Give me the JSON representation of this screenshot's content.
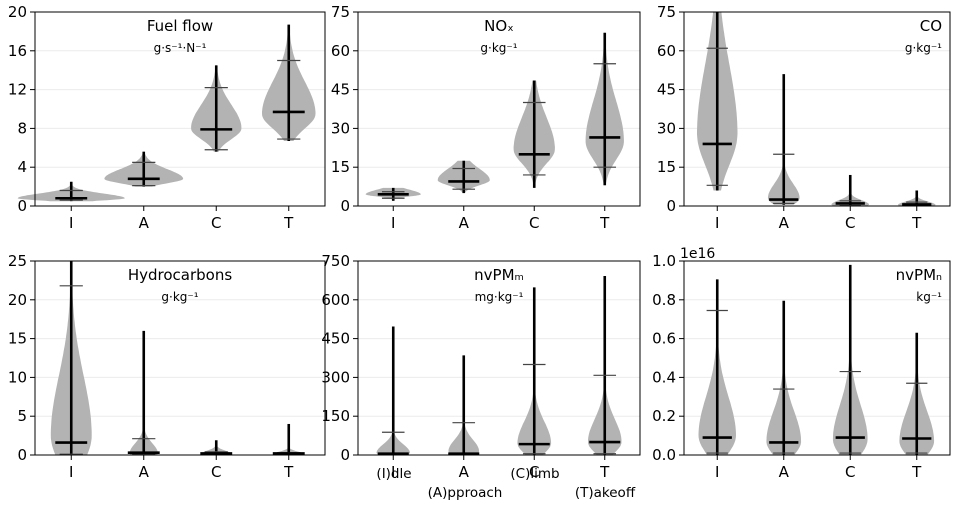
{
  "figure": {
    "category_labels": [
      "(I)dle",
      "(A)pproach",
      "(C)limb",
      "(T)akeoff"
    ]
  },
  "chart_data": [
    {
      "type": "violin",
      "title": "Fuel flow",
      "unit": "g·s⁻¹·N⁻¹",
      "title_align": "center",
      "categories": [
        "I",
        "A",
        "C",
        "T"
      ],
      "ylim": [
        0,
        20
      ],
      "yticks": [
        0,
        4,
        8,
        12,
        16,
        20
      ],
      "ytick_labels": [
        "0",
        "4",
        "8",
        "12",
        "16",
        "20"
      ],
      "multiplier": "",
      "grid": true,
      "series": [
        {
          "category": "I",
          "min": 0.5,
          "max": 2.5,
          "median": 0.8,
          "p05": 0.6,
          "p95": 1.6,
          "peak": 0.8,
          "width": 0.68,
          "spread": 0.22
        },
        {
          "category": "A",
          "min": 2.0,
          "max": 5.6,
          "median": 2.8,
          "p05": 2.1,
          "p95": 4.5,
          "peak": 2.8,
          "width": 0.5,
          "spread": 0.45
        },
        {
          "category": "C",
          "min": 5.6,
          "max": 14.5,
          "median": 7.9,
          "p05": 5.8,
          "p95": 12.2,
          "peak": 8.0,
          "width": 0.32,
          "spread": 1.1
        },
        {
          "category": "T",
          "min": 6.7,
          "max": 18.7,
          "median": 9.7,
          "p05": 6.9,
          "p95": 15.0,
          "peak": 9.5,
          "width": 0.34,
          "spread": 1.5
        }
      ]
    },
    {
      "type": "violin",
      "title": "NOₓ",
      "unit": "g·kg⁻¹",
      "title_align": "center",
      "categories": [
        "I",
        "A",
        "C",
        "T"
      ],
      "ylim": [
        0,
        75
      ],
      "yticks": [
        0,
        15,
        30,
        45,
        60,
        75
      ],
      "ytick_labels": [
        "0",
        "15",
        "30",
        "45",
        "60",
        "75"
      ],
      "multiplier": "",
      "grid": true,
      "series": [
        {
          "category": "I",
          "min": 2.0,
          "max": 7.0,
          "median": 4.5,
          "p05": 3.0,
          "p95": 5.5,
          "peak": 4.5,
          "width": 0.36,
          "spread": 0.8
        },
        {
          "category": "A",
          "min": 5.0,
          "max": 17.5,
          "median": 9.5,
          "p05": 6.5,
          "p95": 14.5,
          "peak": 10.0,
          "width": 0.34,
          "spread": 2.0
        },
        {
          "category": "C",
          "min": 7.0,
          "max": 48.5,
          "median": 20.0,
          "p05": 12.0,
          "p95": 40.0,
          "peak": 22.0,
          "width": 0.27,
          "spread": 5.5
        },
        {
          "category": "T",
          "min": 8.0,
          "max": 67.0,
          "median": 26.5,
          "p05": 15.0,
          "p95": 55.0,
          "peak": 25.0,
          "width": 0.25,
          "spread": 7.0
        }
      ]
    },
    {
      "type": "violin",
      "title": "CO",
      "unit": "g·kg⁻¹",
      "title_align": "right",
      "categories": [
        "I",
        "A",
        "C",
        "T"
      ],
      "ylim": [
        0,
        75
      ],
      "yticks": [
        0,
        15,
        30,
        45,
        60,
        75
      ],
      "ytick_labels": [
        "0",
        "15",
        "30",
        "45",
        "60",
        "75"
      ],
      "multiplier": "",
      "grid": true,
      "series": [
        {
          "category": "I",
          "min": 6.0,
          "max": 75.0,
          "median": 24.0,
          "p05": 8.0,
          "p95": 61.0,
          "peak": 28.0,
          "width": 0.28,
          "spread": 12.0
        },
        {
          "category": "A",
          "min": 0.5,
          "max": 51.0,
          "median": 2.5,
          "p05": 1.0,
          "p95": 20.0,
          "peak": 3.0,
          "width": 0.22,
          "spread": 2.5
        },
        {
          "category": "C",
          "min": 0.0,
          "max": 12.0,
          "median": 1.0,
          "p05": 0.2,
          "p95": 2.0,
          "peak": 0.5,
          "width": 0.26,
          "spread": 0.8
        },
        {
          "category": "T",
          "min": 0.0,
          "max": 6.0,
          "median": 0.6,
          "p05": 0.1,
          "p95": 1.5,
          "peak": 0.4,
          "width": 0.26,
          "spread": 0.6
        }
      ]
    },
    {
      "type": "violin",
      "title": "Hydrocarbons",
      "unit": "g·kg⁻¹",
      "title_align": "center",
      "categories": [
        "I",
        "A",
        "C",
        "T"
      ],
      "ylim": [
        0,
        25
      ],
      "yticks": [
        0,
        5,
        10,
        15,
        20,
        25
      ],
      "ytick_labels": [
        "0",
        "5",
        "10",
        "15",
        "20",
        "25"
      ],
      "multiplier": "",
      "grid": true,
      "series": [
        {
          "category": "I",
          "min": 0.0,
          "max": 25.0,
          "median": 1.6,
          "p05": 0.1,
          "p95": 21.8,
          "peak": 2.5,
          "width": 0.26,
          "spread": 3.5
        },
        {
          "category": "A",
          "min": 0.0,
          "max": 16.0,
          "median": 0.3,
          "p05": 0.05,
          "p95": 2.1,
          "peak": 0.2,
          "width": 0.18,
          "spread": 0.6
        },
        {
          "category": "C",
          "min": 0.0,
          "max": 1.9,
          "median": 0.2,
          "p05": 0.02,
          "p95": 0.4,
          "peak": 0.1,
          "width": 0.2,
          "spread": 0.2
        },
        {
          "category": "T",
          "min": 0.0,
          "max": 4.0,
          "median": 0.2,
          "p05": 0.02,
          "p95": 0.3,
          "peak": 0.1,
          "width": 0.2,
          "spread": 0.15
        }
      ]
    },
    {
      "type": "violin",
      "title": "nvPMₘ",
      "unit": "mg·kg⁻¹",
      "title_align": "center",
      "categories": [
        "I",
        "A",
        "C",
        "T"
      ],
      "ylim": [
        0,
        750
      ],
      "yticks": [
        0,
        150,
        300,
        450,
        600,
        750
      ],
      "ytick_labels": [
        "0",
        "150",
        "300",
        "450",
        "600",
        "750"
      ],
      "multiplier": "",
      "grid": true,
      "series": [
        {
          "category": "I",
          "min": 0.0,
          "max": 497.0,
          "median": 5.0,
          "p05": 1.0,
          "p95": 88.0,
          "peak": 8.0,
          "width": 0.22,
          "spread": 15.0
        },
        {
          "category": "A",
          "min": 0.0,
          "max": 385.0,
          "median": 5.0,
          "p05": 1.0,
          "p95": 125.0,
          "peak": 15.0,
          "width": 0.2,
          "spread": 20.0
        },
        {
          "category": "C",
          "min": 0.0,
          "max": 648.0,
          "median": 42.0,
          "p05": 5.0,
          "p95": 350.0,
          "peak": 45.0,
          "width": 0.22,
          "spread": 38.0
        },
        {
          "category": "T",
          "min": 0.0,
          "max": 692.0,
          "median": 50.0,
          "p05": 5.0,
          "p95": 308.0,
          "peak": 50.0,
          "width": 0.22,
          "spread": 40.0
        }
      ]
    },
    {
      "type": "violin",
      "title": "nvPMₙ",
      "unit": "kg⁻¹",
      "title_align": "right",
      "categories": [
        "I",
        "A",
        "C",
        "T"
      ],
      "ylim": [
        0,
        1.0
      ],
      "yticks": [
        0,
        0.2,
        0.4,
        0.6,
        0.8,
        1.0
      ],
      "ytick_labels": [
        "0.0",
        "0.2",
        "0.4",
        "0.6",
        "0.8",
        "1.0"
      ],
      "multiplier": "1e16",
      "grid": true,
      "series": [
        {
          "category": "I",
          "min": 0.0,
          "max": 0.905,
          "median": 0.09,
          "p05": 0.01,
          "p95": 0.745,
          "peak": 0.1,
          "width": 0.26,
          "spread": 0.09
        },
        {
          "category": "A",
          "min": 0.0,
          "max": 0.795,
          "median": 0.065,
          "p05": 0.01,
          "p95": 0.34,
          "peak": 0.07,
          "width": 0.24,
          "spread": 0.07
        },
        {
          "category": "C",
          "min": 0.0,
          "max": 0.98,
          "median": 0.09,
          "p05": 0.01,
          "p95": 0.43,
          "peak": 0.08,
          "width": 0.24,
          "spread": 0.08
        },
        {
          "category": "T",
          "min": 0.0,
          "max": 0.63,
          "median": 0.085,
          "p05": 0.01,
          "p95": 0.37,
          "peak": 0.07,
          "width": 0.24,
          "spread": 0.07
        }
      ]
    }
  ]
}
